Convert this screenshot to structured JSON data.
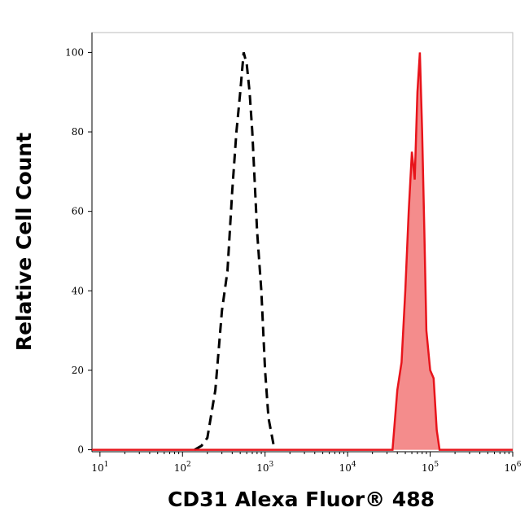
{
  "chart_data": {
    "type": "histogram-overlay",
    "x_label": "CD31 Alexa Fluor® 488",
    "y_label": "Relative Cell Count",
    "xscale": "log",
    "xlim": [
      8,
      1000000
    ],
    "ylim": [
      -0.5,
      105
    ],
    "xticks": [
      {
        "value": 10,
        "label": "10",
        "superscript": "1"
      },
      {
        "value": 100,
        "label": "10",
        "superscript": "2"
      },
      {
        "value": 1000,
        "label": "10",
        "superscript": "3"
      },
      {
        "value": 10000,
        "label": "10",
        "superscript": "4"
      },
      {
        "value": 100000,
        "label": "10",
        "superscript": "5"
      },
      {
        "value": 1000000,
        "label": "10",
        "superscript": "6"
      }
    ],
    "yticks": [
      0,
      20,
      40,
      60,
      80,
      100
    ],
    "series": [
      {
        "color": "#000000",
        "dashed": true,
        "filled": false,
        "x": [
          140,
          170,
          200,
          250,
          300,
          350,
          400,
          450,
          500,
          550,
          600,
          650,
          700,
          800,
          900,
          1000,
          1100,
          1300
        ],
        "values": [
          0,
          1,
          3,
          15,
          35,
          45,
          65,
          80,
          90,
          100,
          97,
          90,
          80,
          55,
          40,
          20,
          8,
          0
        ]
      },
      {
        "color": "#e8141b",
        "dashed": false,
        "filled": true,
        "fill": "#f48c8c",
        "x": [
          8,
          35000,
          40000,
          45000,
          50000,
          55000,
          60000,
          65000,
          70000,
          75000,
          80000,
          85000,
          90000,
          100000,
          110000,
          120000,
          130000,
          1000000
        ],
        "values": [
          0,
          0,
          15,
          22,
          40,
          60,
          75,
          68,
          90,
          100,
          80,
          55,
          30,
          20,
          18,
          5,
          0,
          0
        ]
      }
    ]
  }
}
